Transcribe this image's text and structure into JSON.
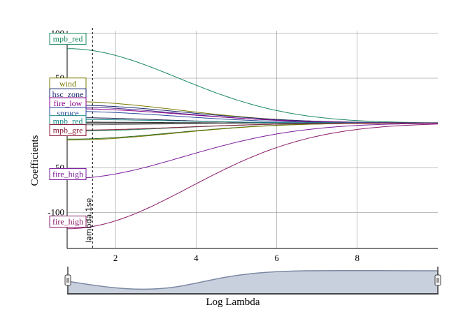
{
  "chart_data": {
    "type": "line",
    "xlabel": "Log Lambda",
    "ylabel": "Coefficients",
    "xlim": [
      0.8,
      10
    ],
    "ylim": [
      -140,
      103
    ],
    "x_ticks": [
      2,
      4,
      6,
      8
    ],
    "y_ticks": [
      -100,
      -50,
      50,
      100
    ],
    "x_tick_labels": [
      "2",
      "4",
      "6",
      "8"
    ],
    "y_tick_labels": [
      "-100",
      "-50",
      "50",
      "100"
    ],
    "grid": true,
    "vline": {
      "x": 1.43,
      "label": "lambda.1se"
    },
    "series": [
      {
        "name": "mpb_red",
        "color": "#1b8a5f",
        "start": 83,
        "k": 0.55,
        "labelY": 94
      },
      {
        "name": "wind",
        "color": "#7a7a00",
        "start": 24,
        "k": 0.55,
        "labelY": 44
      },
      {
        "name": "hsc_zone",
        "color": "#1a2a6e",
        "start": 20,
        "k": 0.5,
        "labelY": 32
      },
      {
        "name": "fire_low",
        "color": "#8b008b",
        "start": 16,
        "k": 0.5,
        "labelY": 22
      },
      {
        "name": "spruce",
        "color": "#2a4a9a",
        "start": 13,
        "k": 0.6,
        "labelY": 11
      },
      {
        "name": "mpb_red",
        "color": "#1a8a8a",
        "start": 4,
        "k": 0.6,
        "labelY": 2
      },
      {
        "name": "mpb_gre",
        "color": "#8b1a3a",
        "start": -8,
        "k": 0.55,
        "labelY": -8
      },
      {
        "name": "fire_high",
        "color": "#7a1a9a",
        "start": -62,
        "k": 0.5,
        "labelY": -57
      },
      {
        "name": "fire_high",
        "color": "#8b1a6a",
        "start": -118,
        "k": 0.45,
        "labelY": -110
      }
    ],
    "extra_lines": [
      {
        "color": "#000000",
        "start": 0,
        "k": 0.9
      },
      {
        "color": "#333333",
        "start": 1,
        "k": 0.9
      },
      {
        "color": "#6a6a6a",
        "start": -2,
        "k": 0.9
      },
      {
        "color": "#1a8a5f",
        "start": -9,
        "k": 0.6
      },
      {
        "color": "#2a6a2a",
        "start": -18,
        "k": 0.6
      },
      {
        "color": "#7a7a00",
        "start": -19,
        "k": 0.6
      },
      {
        "color": "#4a2a8a",
        "start": 18,
        "k": 0.55
      },
      {
        "color": "#1a1a4a",
        "start": 6,
        "k": 0.8
      }
    ],
    "range_selector": {
      "axis_label": "Log Lambda"
    }
  }
}
